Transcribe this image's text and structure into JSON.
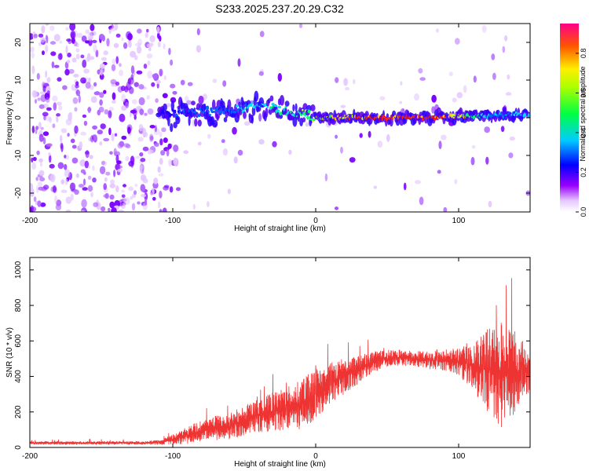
{
  "title": "S233.2025.237.20.29.C32",
  "chart_data": [
    {
      "type": "heatmap",
      "xlabel": "Height of straight line (km)",
      "ylabel": "Frequency (Hz)",
      "xlim": [
        -200,
        150
      ],
      "ylim": [
        -25,
        25
      ],
      "xticks": [
        -200,
        -100,
        0,
        100
      ],
      "yticks": [
        -20,
        -10,
        0,
        10,
        20
      ],
      "colorbar": {
        "label": "Normalized spectral amplitude",
        "range": [
          0,
          0.95
        ],
        "ticks": [
          0.0,
          0.2,
          0.4,
          0.6,
          0.8
        ],
        "colormap": [
          "#ffffff",
          "#9900ff",
          "#0000ff",
          "#00ffff",
          "#00ff00",
          "#ffff00",
          "#ff0000",
          "#ff0099"
        ]
      },
      "ridge": {
        "x": [
          -110,
          -80,
          -60,
          -40,
          -20,
          0,
          20,
          40,
          60,
          80,
          100,
          120,
          140,
          150
        ],
        "frequency": [
          0.5,
          1.5,
          2,
          3,
          2,
          0,
          0,
          0,
          0,
          0,
          0.5,
          0.5,
          1,
          0.5
        ],
        "amplitude": [
          0.15,
          0.25,
          0.3,
          0.45,
          0.5,
          0.6,
          0.75,
          0.85,
          0.9,
          0.9,
          0.75,
          0.35,
          0.4,
          0.45
        ]
      }
    },
    {
      "type": "line",
      "xlabel": "Height of straight line (km)",
      "ylabel": "SNR (10 * v/v)",
      "xlim": [
        -200,
        150
      ],
      "ylim": [
        0,
        1070
      ],
      "xticks": [
        -200,
        -100,
        0,
        100
      ],
      "yticks": [
        0,
        200,
        400,
        600,
        800,
        1000
      ],
      "line_color": "#ee3333",
      "series": [
        {
          "x": [
            -200,
            -180,
            -160,
            -140,
            -120,
            -110,
            -100,
            -90,
            -80,
            -70,
            -60,
            -50,
            -40,
            -30,
            -20,
            -10,
            0,
            10,
            20,
            30,
            40,
            50,
            60,
            70,
            80,
            90,
            100,
            110,
            120,
            130,
            140,
            150
          ],
          "y": [
            25,
            25,
            25,
            25,
            25,
            30,
            45,
            70,
            90,
            110,
            120,
            150,
            180,
            200,
            220,
            240,
            300,
            370,
            400,
            440,
            480,
            500,
            505,
            500,
            490,
            490,
            480,
            460,
            440,
            430,
            420,
            440
          ],
          "spread": [
            10,
            10,
            10,
            10,
            10,
            15,
            30,
            50,
            60,
            70,
            75,
            85,
            95,
            110,
            120,
            140,
            150,
            120,
            100,
            80,
            60,
            50,
            45,
            45,
            50,
            60,
            80,
            130,
            250,
            320,
            230,
            120
          ]
        }
      ]
    }
  ]
}
